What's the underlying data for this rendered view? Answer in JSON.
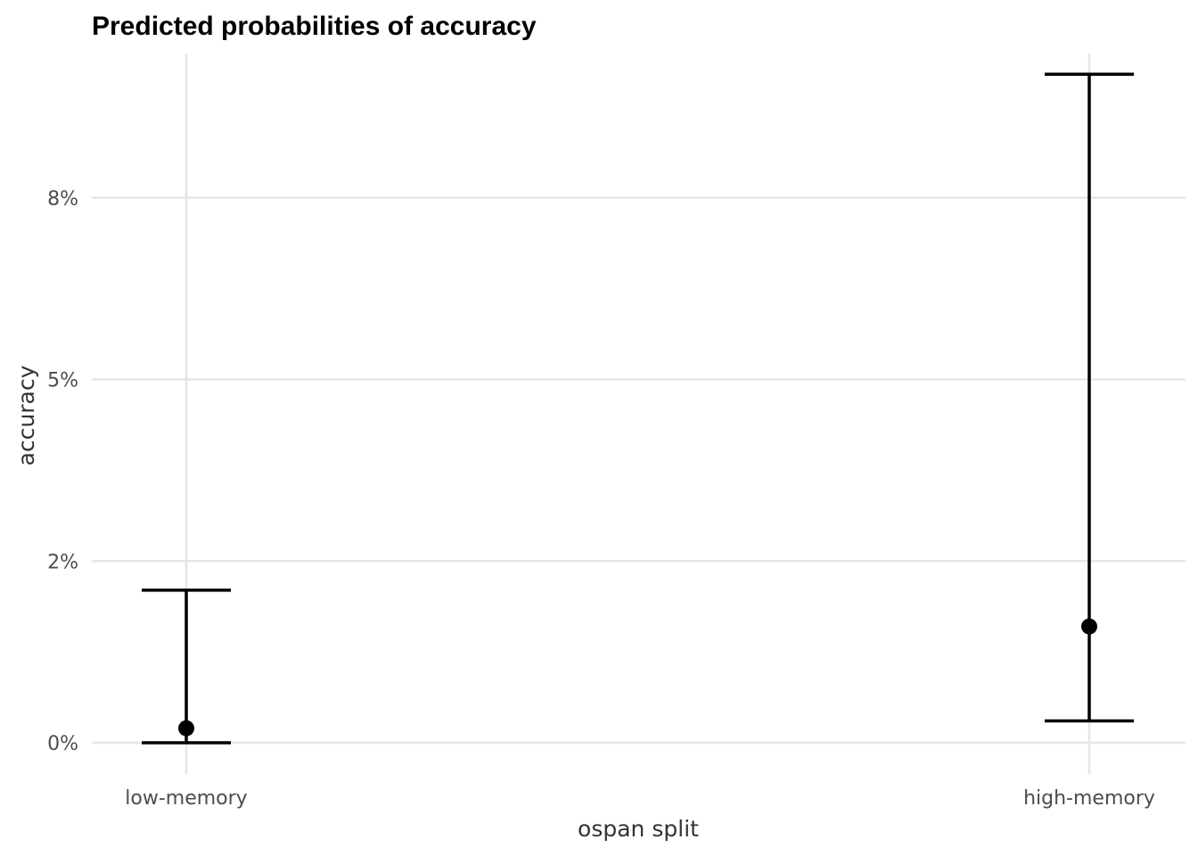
{
  "chart_data": {
    "type": "errorbar",
    "title": "Predicted probabilities of accuracy",
    "xlabel": "ospan split",
    "ylabel": "accuracy",
    "categories": [
      "low-memory",
      "high-memory"
    ],
    "points": [
      {
        "category": "low-memory",
        "estimate": 0.2,
        "lower": 0.0,
        "upper": 2.1
      },
      {
        "category": "high-memory",
        "estimate": 1.6,
        "lower": 0.3,
        "upper": 9.2
      }
    ],
    "y_ticks": [
      0,
      2.5,
      5,
      7.5
    ],
    "y_tick_labels": [
      "0%",
      "2%",
      "5%",
      "8%"
    ],
    "ylim": [
      0,
      9.2
    ],
    "grid": true,
    "legend": "none",
    "colors": {
      "mark": "#000000",
      "grid": "#e6e6e6",
      "tick_text": "#4d4d4d",
      "axis_title": "#333333"
    }
  }
}
